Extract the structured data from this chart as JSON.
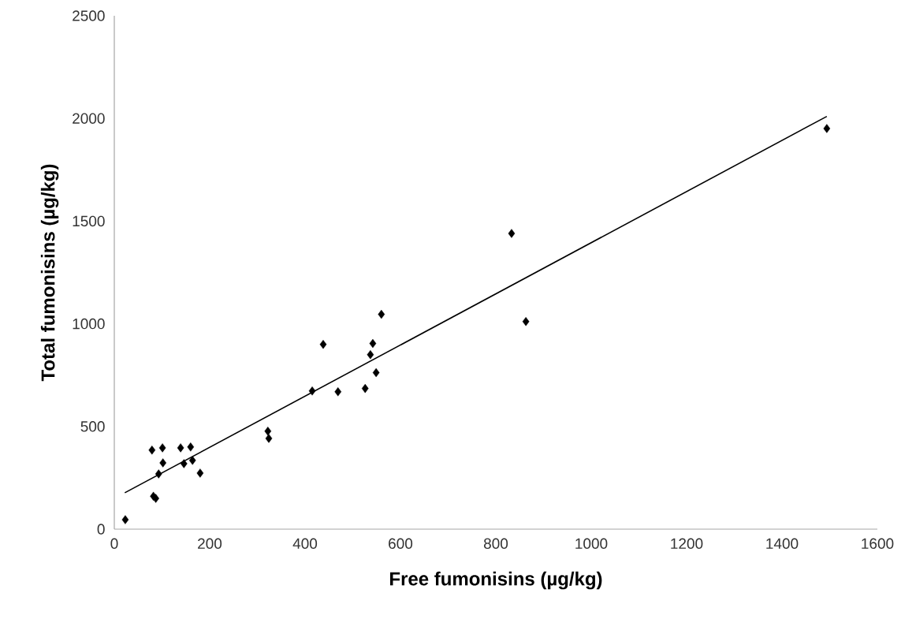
{
  "chart_data": {
    "type": "scatter",
    "xlabel": "Free fumonisins  (µg/kg)",
    "ylabel": "Total fumonisins  (µg/kg)",
    "xlim": [
      0,
      1600
    ],
    "ylim": [
      0,
      2500
    ],
    "xticks": [
      0,
      200,
      400,
      600,
      800,
      1000,
      1200,
      1400,
      1600
    ],
    "yticks": [
      0,
      500,
      1000,
      1500,
      2000,
      2500
    ],
    "grid": false,
    "marker": "diamond",
    "series": [
      {
        "color": "#000000",
        "x": [
          23,
          82,
          87,
          93,
          79,
          101,
          102,
          139,
          146,
          160,
          164,
          180,
          322,
          324,
          415,
          469,
          526,
          549,
          537,
          542,
          438,
          560,
          833,
          863,
          1494
        ],
        "values": [
          46,
          160,
          150,
          269,
          385,
          396,
          323,
          396,
          319,
          400,
          335,
          273,
          477,
          442,
          673,
          669,
          685,
          762,
          850,
          904,
          900,
          1046,
          1440,
          1011,
          1951
        ]
      },
      {
        "type": "line",
        "color": "#000000",
        "marker": "none",
        "line_style": "solid",
        "x": [
          22,
          1494
        ],
        "values": [
          177,
          2010
        ]
      }
    ]
  }
}
